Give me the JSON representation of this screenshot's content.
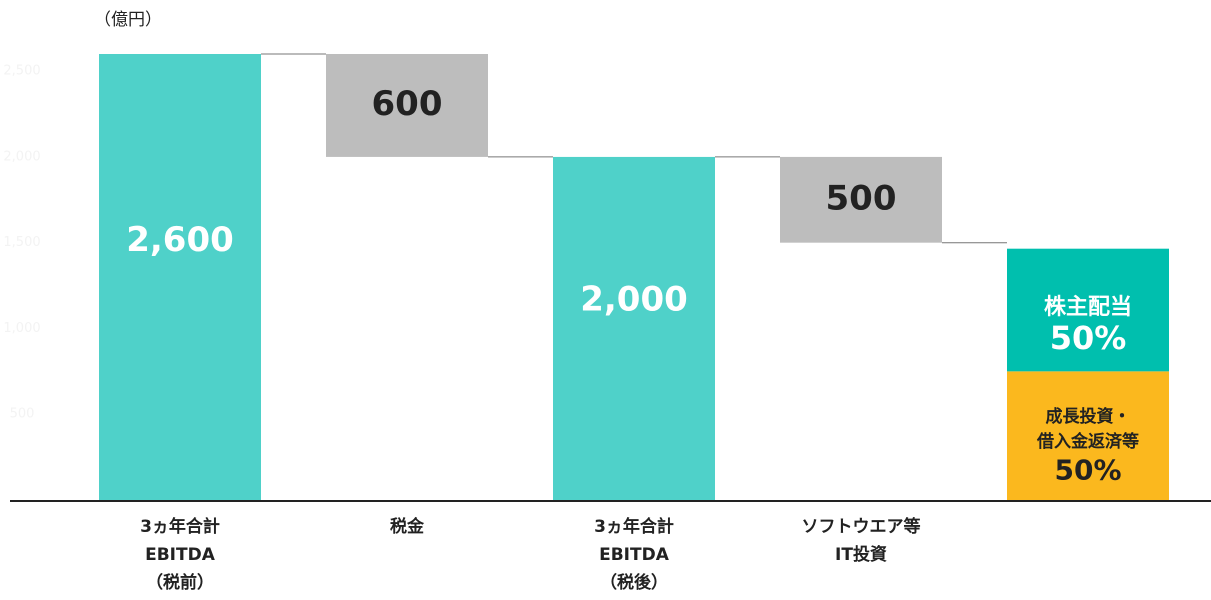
{
  "chart_data": {
    "type": "waterfall",
    "unit_label": "（億円）",
    "categories": [
      [
        "3ヵ年合計",
        "EBITDA",
        "（税前）"
      ],
      [
        "税金"
      ],
      [
        "3ヵ年合計",
        "EBITDA",
        "（税後）"
      ],
      [
        "ソフトウエア等",
        "IT投資"
      ],
      null
    ],
    "values": [
      2600,
      600,
      2000,
      500,
      1500
    ],
    "measure": [
      "total",
      "decrease",
      "total",
      "decrease",
      "total"
    ],
    "value_labels": [
      "2,600",
      "600",
      "2,000",
      "500",
      null
    ],
    "colors": {
      "total": "#4fd1c9",
      "decrease": "#bdbdbd"
    },
    "segments": [
      {
        "name": [
          "成長投資・",
          "借入金返済等"
        ],
        "value": 50,
        "label": "50%",
        "color": "#fbb81e"
      },
      {
        "name": [
          "株主配当"
        ],
        "value": 50,
        "label": "50%",
        "color": "#00bfae"
      }
    ],
    "ylim": [
      0,
      2600
    ],
    "yticks": [
      500,
      {
        "value": 1000,
        "label": "1,000"
      },
      {
        "value": 1500,
        "label": "1,500"
      },
      {
        "value": 2000,
        "label": "2,000"
      },
      {
        "value": 2500,
        "label": "2,500"
      }
    ]
  }
}
